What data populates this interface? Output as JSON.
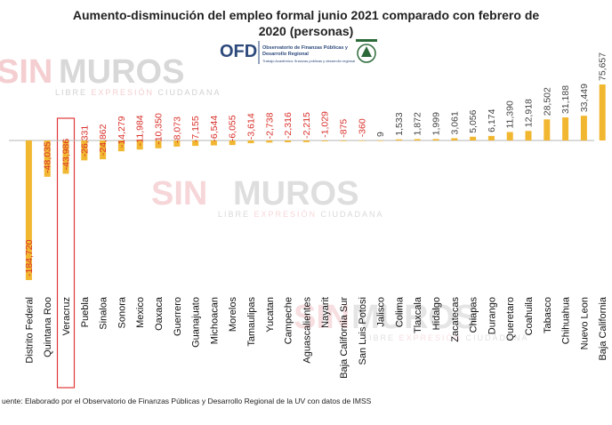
{
  "chart_data": {
    "type": "bar",
    "title_lines": [
      "Aumento-disminución  del empleo formal junio 2021 comparado  con febrero de",
      "2020 (personas)"
    ],
    "categories": [
      "Distrito Federal",
      "Quintana Roo",
      "Veracruz",
      "Puebla",
      "Sinaloa",
      "Sonora",
      "Mexico",
      "Oaxaca",
      "Guerrero",
      "Guanajuato",
      "Michoacan",
      "Morelos",
      "Tamaulipas",
      "Yucatan",
      "Campeche",
      "Aguascalientes",
      "Nayarit",
      "Baja California Sur",
      "San Luis Potosi",
      "Jalisco",
      "Colima",
      "Tlaxcala",
      "Hidalgo",
      "Zacatecas",
      "Chiapas",
      "Durango",
      "Queretaro",
      "Coahuila",
      "Tabasco",
      "Chihuahua",
      "Nuevo Leon",
      "Baja California"
    ],
    "values": [
      -184720,
      -48035,
      -43986,
      -26331,
      -24862,
      -14279,
      -11984,
      -10350,
      -8073,
      -7155,
      -6544,
      -6055,
      -3614,
      -2738,
      -2316,
      -2215,
      -1029,
      -875,
      -360,
      9,
      1533,
      1872,
      1999,
      3061,
      5056,
      6174,
      11390,
      12918,
      28502,
      31188,
      33449,
      75657
    ],
    "value_labels": [
      "-184,720",
      "-48,035",
      "-43,986",
      "-26,331",
      "-24,862",
      "-14,279",
      "-11,984",
      "-10,350",
      "-8,073",
      "-7,155",
      "-6,544",
      "-6,055",
      "-3,614",
      "-2,738",
      "-2,316",
      "-2,215",
      "-1,029",
      "-875",
      "-360",
      "9",
      "1,533",
      "1,872",
      "1,999",
      "3,061",
      "5,056",
      "6,174",
      "11,390",
      "12,918",
      "28,502",
      "31,188",
      "33,449",
      "75,657"
    ],
    "highlighted_category": "Veracruz",
    "colors": {
      "bar": "#f2b731",
      "negative_label": "#d9312b",
      "positive_label": "#444444",
      "highlight_box": "#e0393a"
    },
    "source": "uente: Elaborado por el Observatorio de Finanzas Públicas y Desarrollo Regional de la UV con datos de IMSS"
  },
  "logo": {
    "acronym": "OFD",
    "name_lines": [
      "Observatorio de Finanzas Públicas y",
      "Desarrollo Regional"
    ],
    "tagline": "Trabajo Académico: finanzas públicas y desarrollo regional"
  },
  "watermark": {
    "word1": "SIN",
    "word2": "MUROS",
    "tag_a": "LIBRE ",
    "tag_b": "EXPRESIÓN",
    "tag_c": " CIUDADANA",
    "colors": {
      "sin": "#f3c9cc",
      "muros": "#d4d4d4",
      "tag": "#cccccc"
    }
  }
}
